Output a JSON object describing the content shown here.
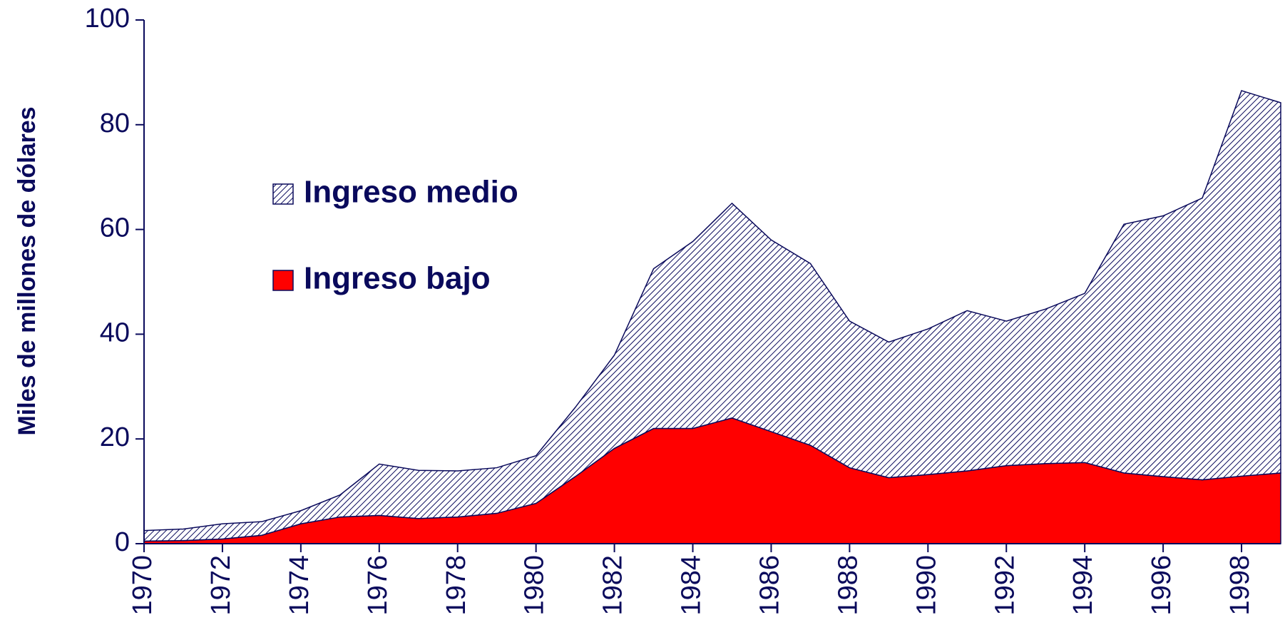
{
  "chart_data": {
    "type": "area",
    "stacked": true,
    "y_label": "Miles de millones de dólares",
    "x": [
      1970,
      1971,
      1972,
      1973,
      1974,
      1975,
      1976,
      1977,
      1978,
      1979,
      1980,
      1981,
      1982,
      1983,
      1984,
      1985,
      1986,
      1987,
      1988,
      1989,
      1990,
      1991,
      1992,
      1993,
      1994,
      1995,
      1996,
      1997,
      1998,
      1999
    ],
    "series": [
      {
        "name": "Ingreso bajo",
        "color": "#ff0000",
        "hatch": false,
        "values": [
          0.5,
          0.6,
          0.9,
          1.6,
          3.8,
          5.1,
          5.4,
          4.8,
          5.1,
          5.8,
          7.7,
          12.8,
          18.2,
          22.0,
          22.0,
          24.0,
          21.4,
          18.8,
          14.5,
          12.6,
          13.2,
          13.9,
          14.9,
          15.3,
          15.5,
          13.5,
          12.8,
          12.2,
          12.9,
          13.5
        ]
      },
      {
        "name": "Ingreso medio",
        "color": "#0a0a5c",
        "hatch": true,
        "values": [
          2.0,
          2.2,
          2.9,
          2.6,
          2.5,
          4.2,
          9.8,
          9.2,
          8.8,
          8.7,
          9.1,
          13.2,
          17.8,
          30.5,
          35.7,
          41.0,
          36.6,
          34.7,
          28.0,
          25.9,
          27.8,
          30.6,
          27.6,
          29.5,
          32.3,
          47.5,
          49.8,
          53.8,
          73.6,
          70.7
        ]
      }
    ],
    "xlim": [
      1970,
      1999
    ],
    "xticks": [
      1970,
      1972,
      1974,
      1976,
      1978,
      1980,
      1982,
      1984,
      1986,
      1988,
      1990,
      1992,
      1994,
      1996,
      1998
    ],
    "ylim": [
      0,
      100
    ],
    "yticks": [
      0,
      20,
      40,
      60,
      80,
      100
    ],
    "legend": "upper left",
    "legend_order": [
      1,
      0
    ]
  }
}
